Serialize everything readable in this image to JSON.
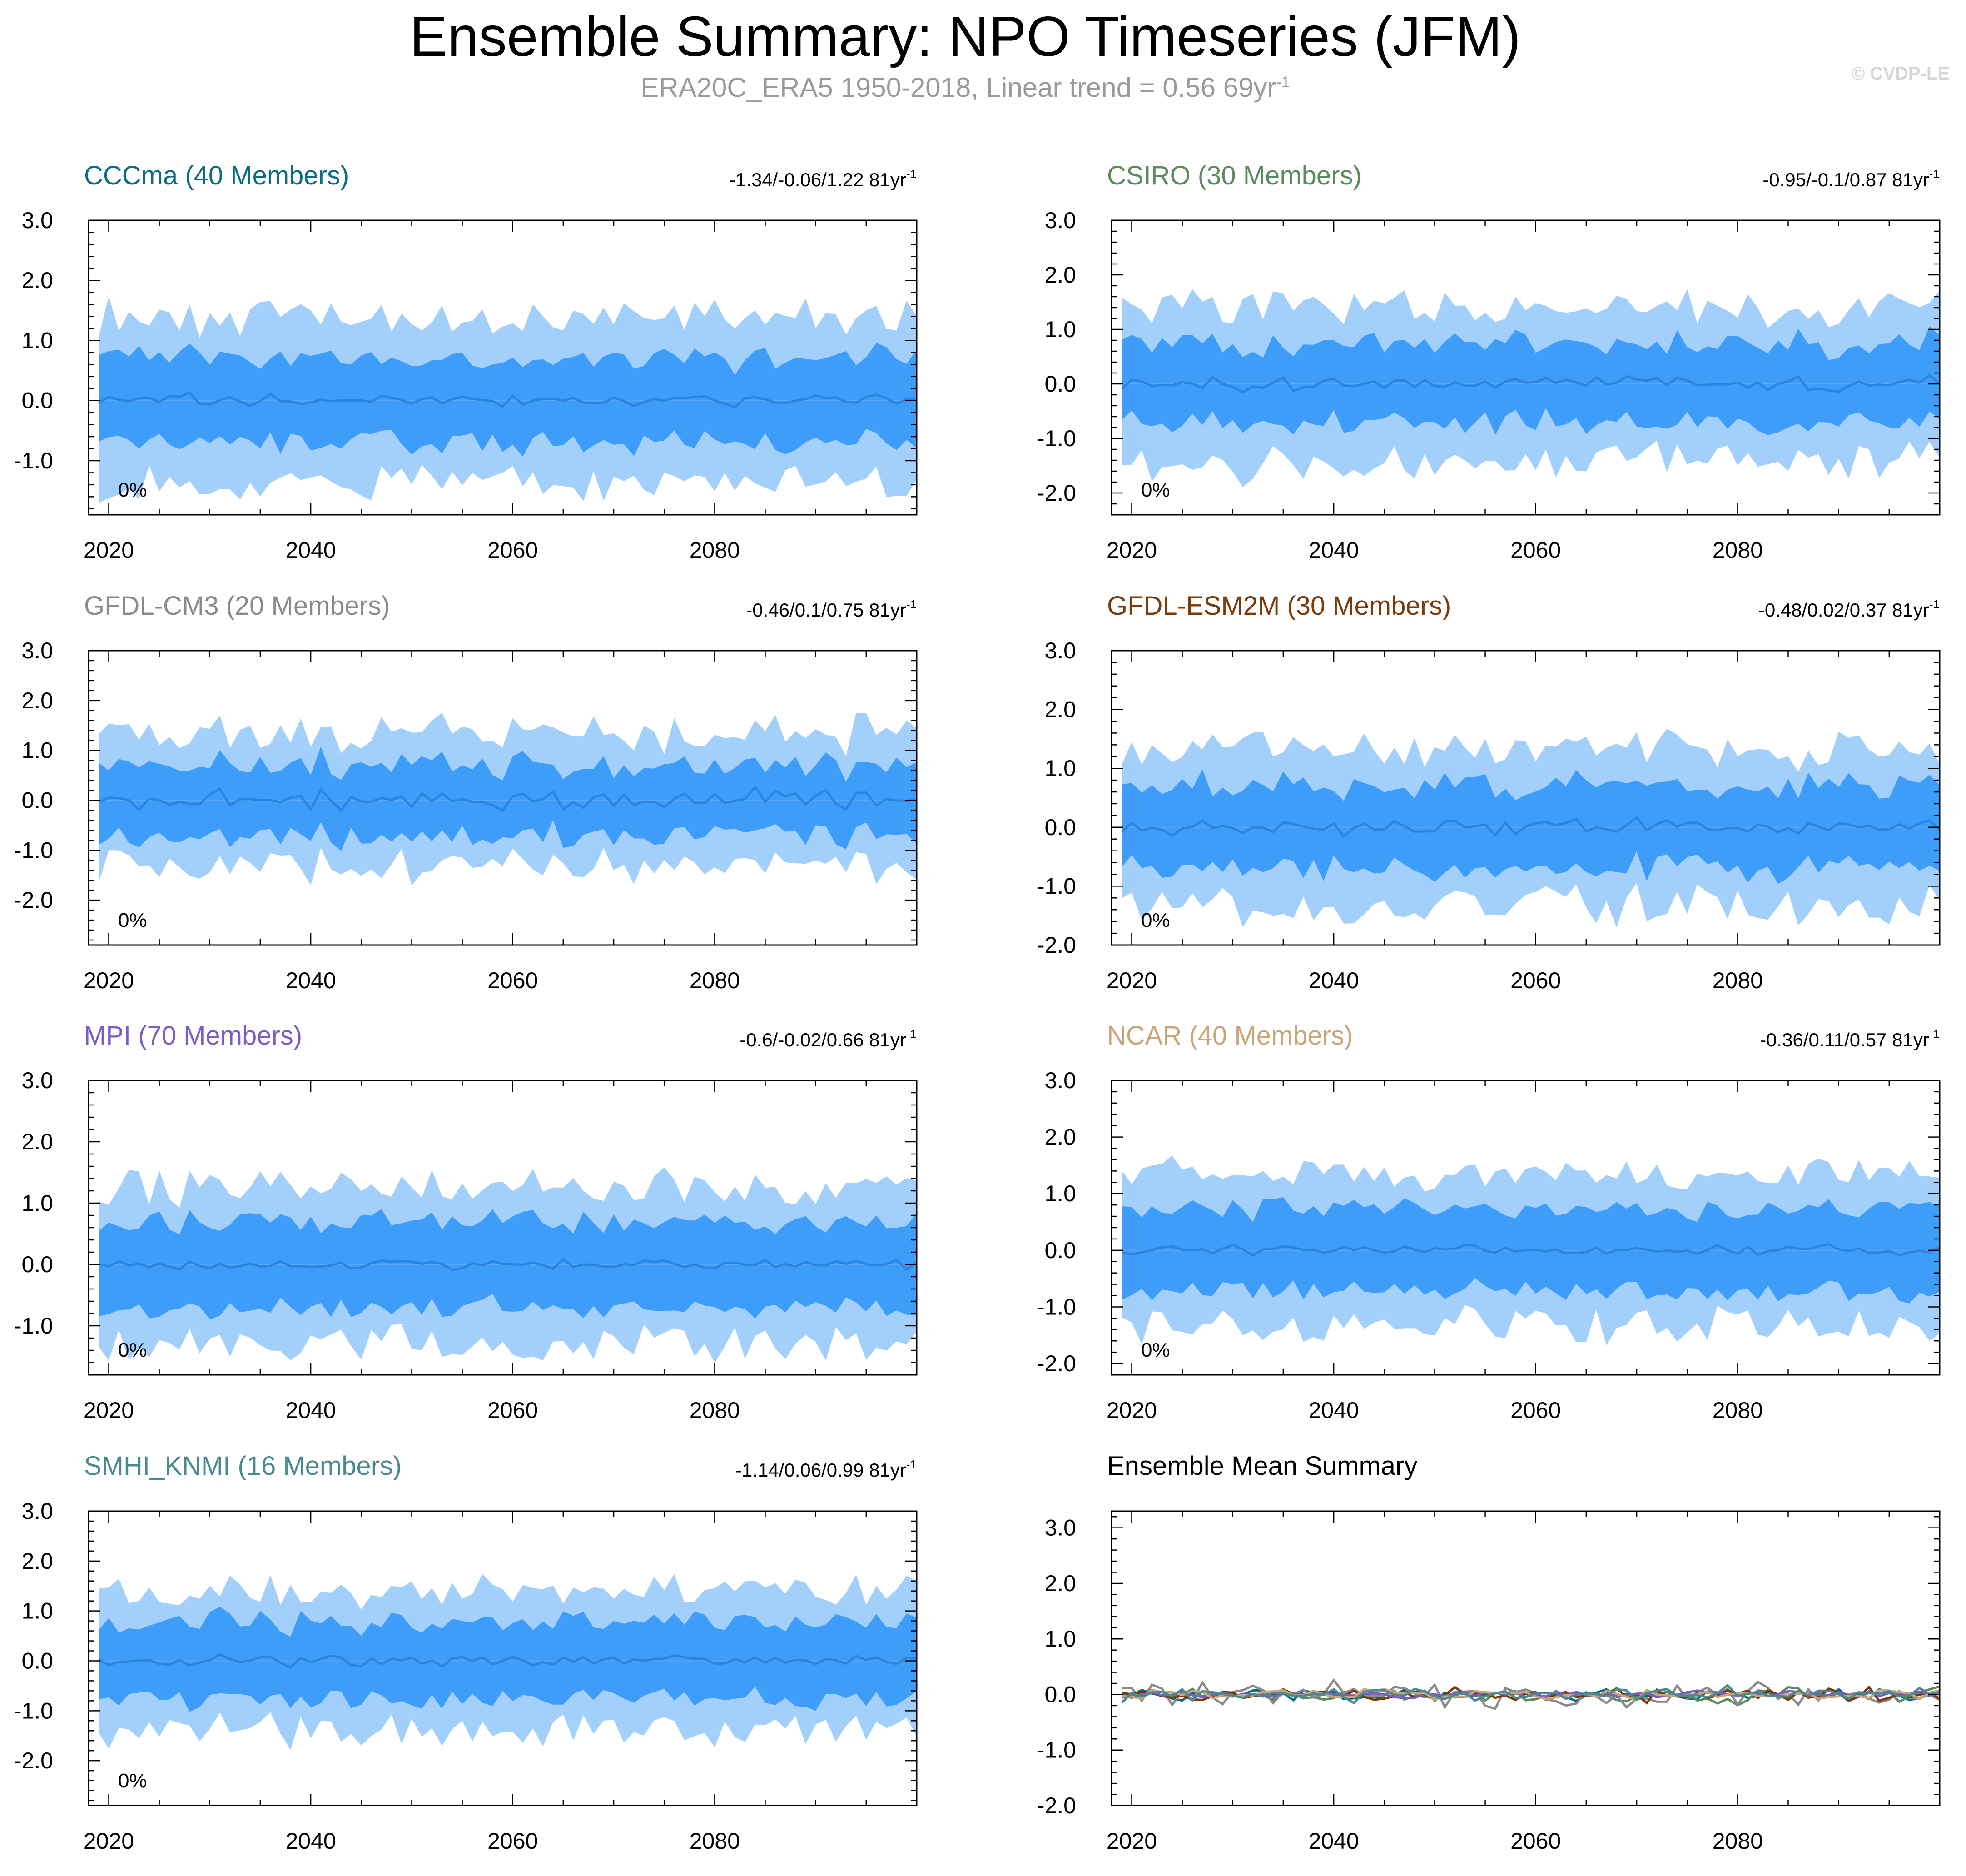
{
  "title": "Ensemble Summary: NPO Timeseries (JFM)",
  "subtitle": "ERA20C_ERA5 1950-2018, Linear trend = 0.56 69yr",
  "subtitle_sup": "-1",
  "watermark": "© CVDP-LE",
  "colors": {
    "band_outer": "#a3cffb",
    "band_inner": "#3d9df8",
    "mean_line": "#2b84e0",
    "axis": "#000000"
  },
  "chart_data": [
    {
      "type": "area",
      "title": "CCCma (40 Members)",
      "title_color": "#0a6e80",
      "range_label": "-1.34/-0.06/1.22 81yr",
      "range_sup": "-1",
      "percent_label": "0%",
      "x_start": 2019,
      "x_end": 2100,
      "xlim": [
        2018,
        2100
      ],
      "ylim": [
        -1.9,
        3.0
      ],
      "xticks": [
        2020,
        2040,
        2060,
        2080
      ],
      "yticks": [
        3.0,
        2.0,
        1.0,
        0.0,
        -1.0
      ],
      "ytick_labels": [
        "3.0",
        "2.0",
        "1.0",
        "0.0",
        "-1.0"
      ],
      "seed": 11,
      "spread_outer": 1.35,
      "spread_inner": 0.7,
      "mean_amp": 0.18,
      "offset": 0.0
    },
    {
      "type": "area",
      "title": "CSIRO (30 Members)",
      "title_color": "#5b8a5e",
      "range_label": "-0.95/-0.1/0.87 81yr",
      "range_sup": "-1",
      "percent_label": "0%",
      "x_start": 2019,
      "x_end": 2100,
      "xlim": [
        2018,
        2100
      ],
      "ylim": [
        -2.4,
        3.0
      ],
      "xticks": [
        2020,
        2040,
        2060,
        2080
      ],
      "yticks": [
        3.0,
        2.0,
        1.0,
        0.0,
        -1.0,
        -2.0
      ],
      "ytick_labels": [
        "3.0",
        "2.0",
        "1.0",
        "0.0",
        "-1.0",
        "-2.0"
      ],
      "seed": 23,
      "spread_outer": 1.4,
      "spread_inner": 0.72,
      "mean_amp": 0.22,
      "offset": 0.0
    },
    {
      "type": "area",
      "title": "GFDL-CM3 (20 Members)",
      "title_color": "#8a8a8a",
      "range_label": "-0.46/0.1/0.75 81yr",
      "range_sup": "-1",
      "percent_label": "0%",
      "x_start": 2019,
      "x_end": 2100,
      "xlim": [
        2018,
        2100
      ],
      "ylim": [
        -2.9,
        3.0
      ],
      "xticks": [
        2020,
        2040,
        2060,
        2080
      ],
      "yticks": [
        3.0,
        2.0,
        1.0,
        0.0,
        -1.0,
        -2.0
      ],
      "ytick_labels": [
        "3.0",
        "2.0",
        "1.0",
        "0.0",
        "-1.0",
        "-2.0"
      ],
      "seed": 37,
      "spread_outer": 1.3,
      "spread_inner": 0.7,
      "mean_amp": 0.35,
      "offset": 0.0
    },
    {
      "type": "area",
      "title": "GFDL-ESM2M (30 Members)",
      "title_color": "#7a3a0a",
      "range_label": "-0.48/0.02/0.37 81yr",
      "range_sup": "-1",
      "percent_label": "0%",
      "x_start": 2019,
      "x_end": 2100,
      "xlim": [
        2018,
        2100
      ],
      "ylim": [
        -2.0,
        3.0
      ],
      "xticks": [
        2020,
        2040,
        2060,
        2080
      ],
      "yticks": [
        3.0,
        2.0,
        1.0,
        0.0,
        -1.0,
        -2.0
      ],
      "ytick_labels": [
        "3.0",
        "2.0",
        "1.0",
        "0.0",
        "-1.0",
        "-2.0"
      ],
      "seed": 41,
      "spread_outer": 1.3,
      "spread_inner": 0.7,
      "mean_amp": 0.2,
      "offset": 0.0
    },
    {
      "type": "area",
      "title": "MPI (70 Members)",
      "title_color": "#7a5cc4",
      "range_label": "-0.6/-0.02/0.66 81yr",
      "range_sup": "-1",
      "percent_label": "0%",
      "x_start": 2019,
      "x_end": 2100,
      "xlim": [
        2018,
        2100
      ],
      "ylim": [
        -1.8,
        3.0
      ],
      "xticks": [
        2020,
        2040,
        2060,
        2080
      ],
      "yticks": [
        3.0,
        2.0,
        1.0,
        0.0,
        -1.0
      ],
      "ytick_labels": [
        "3.0",
        "2.0",
        "1.0",
        "0.0",
        "-1.0"
      ],
      "seed": 53,
      "spread_outer": 1.25,
      "spread_inner": 0.7,
      "mean_amp": 0.1,
      "offset": 0.0
    },
    {
      "type": "area",
      "title": "NCAR (40 Members)",
      "title_color": "#c9a57a",
      "range_label": "-0.36/0.11/0.57 81yr",
      "range_sup": "-1",
      "percent_label": "0%",
      "x_start": 2019,
      "x_end": 2100,
      "xlim": [
        2018,
        2100
      ],
      "ylim": [
        -2.2,
        3.0
      ],
      "xticks": [
        2020,
        2040,
        2060,
        2080
      ],
      "yticks": [
        3.0,
        2.0,
        1.0,
        0.0,
        -1.0,
        -2.0
      ],
      "ytick_labels": [
        "3.0",
        "2.0",
        "1.0",
        "0.0",
        "-1.0",
        "-2.0"
      ],
      "seed": 67,
      "spread_outer": 1.3,
      "spread_inner": 0.72,
      "mean_amp": 0.15,
      "offset": 0.0
    },
    {
      "type": "area",
      "title": "SMHI_KNMI (16 Members)",
      "title_color": "#4a8a8e",
      "range_label": "-1.14/0.06/0.99 81yr",
      "range_sup": "-1",
      "percent_label": "0%",
      "x_start": 2019,
      "x_end": 2100,
      "xlim": [
        2018,
        2100
      ],
      "ylim": [
        -2.9,
        3.0
      ],
      "xticks": [
        2020,
        2040,
        2060,
        2080
      ],
      "yticks": [
        3.0,
        2.0,
        1.0,
        0.0,
        -1.0,
        -2.0
      ],
      "ytick_labels": [
        "3.0",
        "2.0",
        "1.0",
        "0.0",
        "-1.0",
        "-2.0"
      ],
      "seed": 79,
      "spread_outer": 1.35,
      "spread_inner": 0.78,
      "mean_amp": 0.18,
      "offset": 0.0
    },
    {
      "type": "line",
      "title": "Ensemble Mean Summary",
      "title_color": "#000000",
      "x_start": 2019,
      "x_end": 2100,
      "xlim": [
        2018,
        2100
      ],
      "ylim": [
        -2.0,
        3.3
      ],
      "xticks": [
        2020,
        2040,
        2060,
        2080
      ],
      "yticks": [
        3.0,
        2.0,
        1.0,
        0.0,
        -1.0,
        -2.0
      ],
      "ytick_labels": [
        "3.0",
        "2.0",
        "1.0",
        "0.0",
        "-1.0",
        "-2.0"
      ],
      "series_colors": [
        "#0a6e80",
        "#5b8a5e",
        "#8a8a8a",
        "#7a3a0a",
        "#7a5cc4",
        "#c9a57a",
        "#4a8a8e"
      ],
      "series_seeds": [
        11,
        23,
        37,
        41,
        53,
        67,
        79
      ],
      "series_amp": [
        0.18,
        0.22,
        0.35,
        0.2,
        0.1,
        0.15,
        0.18
      ]
    }
  ]
}
